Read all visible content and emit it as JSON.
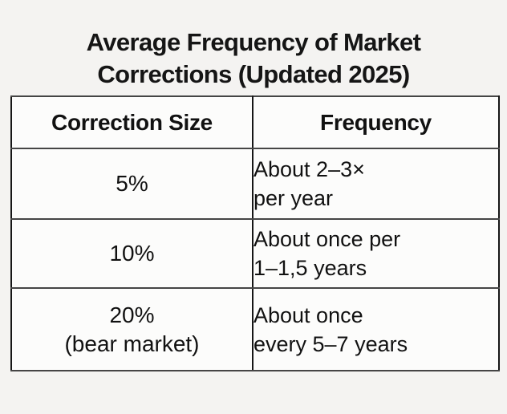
{
  "title": {
    "full": "Average Frequency of Market Corrections (Updated 2025)",
    "line1": "Average Frequency of Market",
    "line2": "Corrections (Updated 2025)"
  },
  "chart_data": {
    "type": "table",
    "title": "Average Frequency of Market Corrections (Updated 2025)",
    "columns": [
      "Correction Size",
      "Frequency"
    ],
    "rows": [
      [
        "5%",
        "About 2–3× per year"
      ],
      [
        "10%",
        "About once per 1–1,5 years"
      ],
      [
        "20% (bear market)",
        "About once every 5–7 years"
      ]
    ]
  },
  "table": {
    "header": {
      "correction_size": "Correction Size",
      "frequency": "Frequency"
    },
    "rows": [
      {
        "size": [
          "5%"
        ],
        "freq": [
          "About 2–3×",
          "per year"
        ]
      },
      {
        "size": [
          "10%"
        ],
        "freq": [
          "About once per",
          "1–1,5 years"
        ]
      },
      {
        "size": [
          "20%",
          "(bear market)"
        ],
        "freq": [
          "About once",
          "every 5–7 years"
        ]
      }
    ]
  },
  "colors": {
    "page_background": "#f4f3f1",
    "cell_background": "#fcfcfb",
    "border_vertical": "#161616",
    "border_horizontal": "#454545",
    "text": "#111111"
  }
}
